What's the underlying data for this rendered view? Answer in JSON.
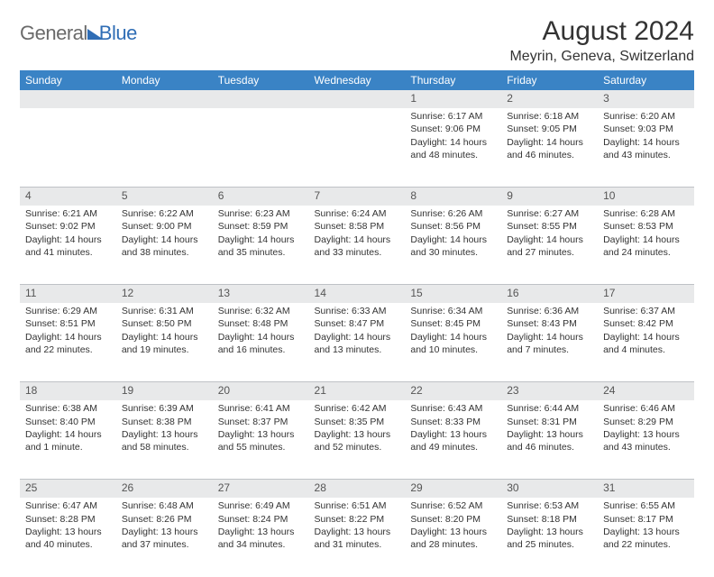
{
  "logo": {
    "word1": "General",
    "word2": "Blue"
  },
  "header": {
    "month_title": "August 2024",
    "location": "Meyrin, Geneva, Switzerland"
  },
  "style": {
    "header_bg": "#3a83c5",
    "header_fg": "#ffffff",
    "daynum_bg": "#e8e9ea",
    "rule_color": "#bfc2c6",
    "body_bg": "#ffffff",
    "text_color": "#333333",
    "logo_gray": "#6a6a6a",
    "logo_blue": "#2f6db5",
    "title_fontsize_pt": 30,
    "location_fontsize_pt": 16,
    "day_header_fontsize_pt": 12,
    "cell_fontsize_pt": 10.5
  },
  "weekdays": [
    "Sunday",
    "Monday",
    "Tuesday",
    "Wednesday",
    "Thursday",
    "Friday",
    "Saturday"
  ],
  "labels": {
    "sunrise": "Sunrise:",
    "sunset": "Sunset:",
    "daylight": "Daylight:"
  },
  "weeks": [
    [
      null,
      null,
      null,
      null,
      {
        "n": "1",
        "sr": "6:17 AM",
        "ss": "9:06 PM",
        "dl": "14 hours and 48 minutes."
      },
      {
        "n": "2",
        "sr": "6:18 AM",
        "ss": "9:05 PM",
        "dl": "14 hours and 46 minutes."
      },
      {
        "n": "3",
        "sr": "6:20 AM",
        "ss": "9:03 PM",
        "dl": "14 hours and 43 minutes."
      }
    ],
    [
      {
        "n": "4",
        "sr": "6:21 AM",
        "ss": "9:02 PM",
        "dl": "14 hours and 41 minutes."
      },
      {
        "n": "5",
        "sr": "6:22 AM",
        "ss": "9:00 PM",
        "dl": "14 hours and 38 minutes."
      },
      {
        "n": "6",
        "sr": "6:23 AM",
        "ss": "8:59 PM",
        "dl": "14 hours and 35 minutes."
      },
      {
        "n": "7",
        "sr": "6:24 AM",
        "ss": "8:58 PM",
        "dl": "14 hours and 33 minutes."
      },
      {
        "n": "8",
        "sr": "6:26 AM",
        "ss": "8:56 PM",
        "dl": "14 hours and 30 minutes."
      },
      {
        "n": "9",
        "sr": "6:27 AM",
        "ss": "8:55 PM",
        "dl": "14 hours and 27 minutes."
      },
      {
        "n": "10",
        "sr": "6:28 AM",
        "ss": "8:53 PM",
        "dl": "14 hours and 24 minutes."
      }
    ],
    [
      {
        "n": "11",
        "sr": "6:29 AM",
        "ss": "8:51 PM",
        "dl": "14 hours and 22 minutes."
      },
      {
        "n": "12",
        "sr": "6:31 AM",
        "ss": "8:50 PM",
        "dl": "14 hours and 19 minutes."
      },
      {
        "n": "13",
        "sr": "6:32 AM",
        "ss": "8:48 PM",
        "dl": "14 hours and 16 minutes."
      },
      {
        "n": "14",
        "sr": "6:33 AM",
        "ss": "8:47 PM",
        "dl": "14 hours and 13 minutes."
      },
      {
        "n": "15",
        "sr": "6:34 AM",
        "ss": "8:45 PM",
        "dl": "14 hours and 10 minutes."
      },
      {
        "n": "16",
        "sr": "6:36 AM",
        "ss": "8:43 PM",
        "dl": "14 hours and 7 minutes."
      },
      {
        "n": "17",
        "sr": "6:37 AM",
        "ss": "8:42 PM",
        "dl": "14 hours and 4 minutes."
      }
    ],
    [
      {
        "n": "18",
        "sr": "6:38 AM",
        "ss": "8:40 PM",
        "dl": "14 hours and 1 minute."
      },
      {
        "n": "19",
        "sr": "6:39 AM",
        "ss": "8:38 PM",
        "dl": "13 hours and 58 minutes."
      },
      {
        "n": "20",
        "sr": "6:41 AM",
        "ss": "8:37 PM",
        "dl": "13 hours and 55 minutes."
      },
      {
        "n": "21",
        "sr": "6:42 AM",
        "ss": "8:35 PM",
        "dl": "13 hours and 52 minutes."
      },
      {
        "n": "22",
        "sr": "6:43 AM",
        "ss": "8:33 PM",
        "dl": "13 hours and 49 minutes."
      },
      {
        "n": "23",
        "sr": "6:44 AM",
        "ss": "8:31 PM",
        "dl": "13 hours and 46 minutes."
      },
      {
        "n": "24",
        "sr": "6:46 AM",
        "ss": "8:29 PM",
        "dl": "13 hours and 43 minutes."
      }
    ],
    [
      {
        "n": "25",
        "sr": "6:47 AM",
        "ss": "8:28 PM",
        "dl": "13 hours and 40 minutes."
      },
      {
        "n": "26",
        "sr": "6:48 AM",
        "ss": "8:26 PM",
        "dl": "13 hours and 37 minutes."
      },
      {
        "n": "27",
        "sr": "6:49 AM",
        "ss": "8:24 PM",
        "dl": "13 hours and 34 minutes."
      },
      {
        "n": "28",
        "sr": "6:51 AM",
        "ss": "8:22 PM",
        "dl": "13 hours and 31 minutes."
      },
      {
        "n": "29",
        "sr": "6:52 AM",
        "ss": "8:20 PM",
        "dl": "13 hours and 28 minutes."
      },
      {
        "n": "30",
        "sr": "6:53 AM",
        "ss": "8:18 PM",
        "dl": "13 hours and 25 minutes."
      },
      {
        "n": "31",
        "sr": "6:55 AM",
        "ss": "8:17 PM",
        "dl": "13 hours and 22 minutes."
      }
    ]
  ]
}
